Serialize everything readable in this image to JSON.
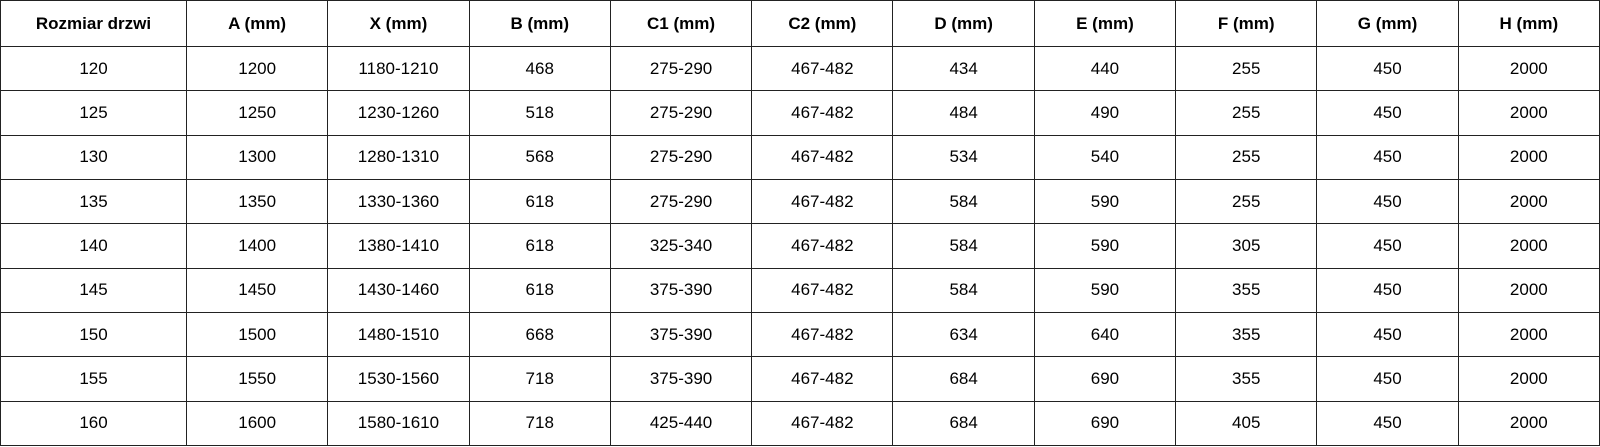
{
  "table": {
    "headers": [
      "Rozmiar drzwi",
      "A (mm)",
      "X (mm)",
      "B (mm)",
      "C1 (mm)",
      "C2 (mm)",
      "D (mm)",
      "E (mm)",
      "F (mm)",
      "G (mm)",
      "H (mm)"
    ],
    "rows": [
      [
        "120",
        "1200",
        "1180-1210",
        "468",
        "275-290",
        "467-482",
        "434",
        "440",
        "255",
        "450",
        "2000"
      ],
      [
        "125",
        "1250",
        "1230-1260",
        "518",
        "275-290",
        "467-482",
        "484",
        "490",
        "255",
        "450",
        "2000"
      ],
      [
        "130",
        "1300",
        "1280-1310",
        "568",
        "275-290",
        "467-482",
        "534",
        "540",
        "255",
        "450",
        "2000"
      ],
      [
        "135",
        "1350",
        "1330-1360",
        "618",
        "275-290",
        "467-482",
        "584",
        "590",
        "255",
        "450",
        "2000"
      ],
      [
        "140",
        "1400",
        "1380-1410",
        "618",
        "325-340",
        "467-482",
        "584",
        "590",
        "305",
        "450",
        "2000"
      ],
      [
        "145",
        "1450",
        "1430-1460",
        "618",
        "375-390",
        "467-482",
        "584",
        "590",
        "355",
        "450",
        "2000"
      ],
      [
        "150",
        "1500",
        "1480-1510",
        "668",
        "375-390",
        "467-482",
        "634",
        "640",
        "355",
        "450",
        "2000"
      ],
      [
        "155",
        "1550",
        "1530-1560",
        "718",
        "375-390",
        "467-482",
        "684",
        "690",
        "355",
        "450",
        "2000"
      ],
      [
        "160",
        "1600",
        "1580-1610",
        "718",
        "425-440",
        "467-482",
        "684",
        "690",
        "405",
        "450",
        "2000"
      ]
    ]
  }
}
